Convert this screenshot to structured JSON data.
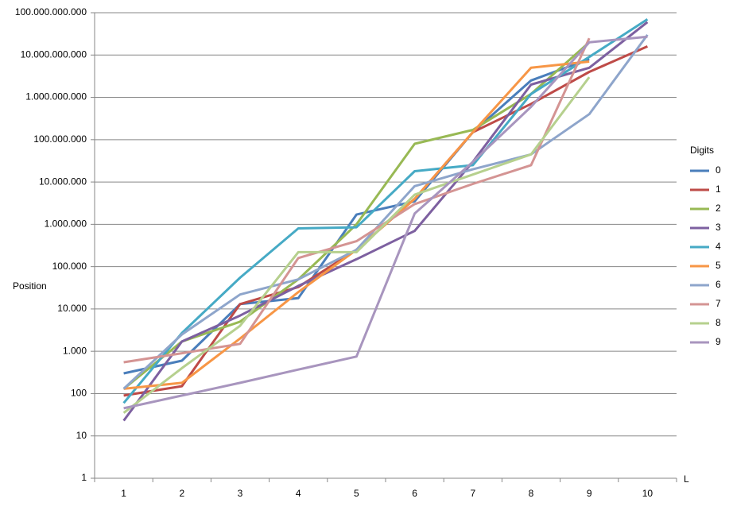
{
  "chart_data": {
    "type": "line",
    "y_label": "Position",
    "x_label": "L",
    "legend_title": "Digits",
    "categories": [
      1,
      2,
      3,
      4,
      5,
      6,
      7,
      8,
      9,
      10
    ],
    "series": [
      {
        "name": "0",
        "color": "#4a7ebb",
        "values": [
          300,
          600,
          13000,
          18000,
          1700000,
          3500000,
          150000000,
          2500000000,
          8000000000,
          null
        ]
      },
      {
        "name": "1",
        "color": "#be4b48",
        "values": [
          90,
          150,
          13000,
          33000,
          250000,
          4000000,
          150000000,
          700000000,
          4000000000,
          16000000000
        ]
      },
      {
        "name": "2",
        "color": "#98b954",
        "values": [
          130,
          1700,
          5000,
          50000,
          1000000,
          80000000,
          170000000,
          1200000000,
          20000000000,
          null
        ]
      },
      {
        "name": "3",
        "color": "#7d60a0",
        "values": [
          23,
          1700,
          7000,
          35000,
          150000,
          700000,
          30000000,
          2000000000,
          5000000000,
          60000000000
        ]
      },
      {
        "name": "4",
        "color": "#46aac5",
        "values": [
          60,
          2700,
          55000,
          800000,
          850000,
          18000000,
          25000000,
          1200000000,
          9000000000,
          70000000000
        ]
      },
      {
        "name": "5",
        "color": "#f79646",
        "values": [
          130,
          180,
          2000,
          25000,
          250000,
          4000000,
          150000000,
          5000000000,
          7000000000,
          null
        ]
      },
      {
        "name": "6",
        "color": "#8ea5cb",
        "values": [
          130,
          2500,
          22000,
          50000,
          250000,
          8000000,
          20000000,
          45000000,
          400000000,
          30000000000
        ]
      },
      {
        "name": "7",
        "color": "#d49493",
        "values": [
          550,
          900,
          1500,
          160000,
          400000,
          3000000,
          9000000,
          25000000,
          25000000000,
          null
        ]
      },
      {
        "name": "8",
        "color": "#b6d08e",
        "values": [
          35,
          400,
          4000,
          220000,
          220000,
          5000000,
          15000000,
          45000000,
          3000000000,
          null
        ]
      },
      {
        "name": "9",
        "color": "#a895be",
        "values": [
          45,
          90,
          180,
          370,
          750,
          1800000,
          30000000,
          600000000,
          20000000000,
          27000000000
        ]
      }
    ],
    "log_scale": true,
    "grid": true,
    "ylim": [
      1,
      100000000000
    ],
    "yticks": [
      1,
      10,
      100,
      {
        "value": 1000,
        "label": "1.000"
      },
      {
        "value": 10000,
        "label": "10.000"
      },
      {
        "value": 100000,
        "label": "100.000"
      },
      {
        "value": 1000000,
        "label": "1.000.000"
      },
      {
        "value": 10000000,
        "label": "10.000.000"
      },
      {
        "value": 100000000,
        "label": "100.000.000"
      },
      {
        "value": 1000000000,
        "label": "1.000.000.000"
      },
      {
        "value": 10000000000,
        "label": "10.000.000.000"
      },
      {
        "value": 100000000000,
        "label": "100.000.000.000"
      }
    ],
    "legend": "right"
  }
}
